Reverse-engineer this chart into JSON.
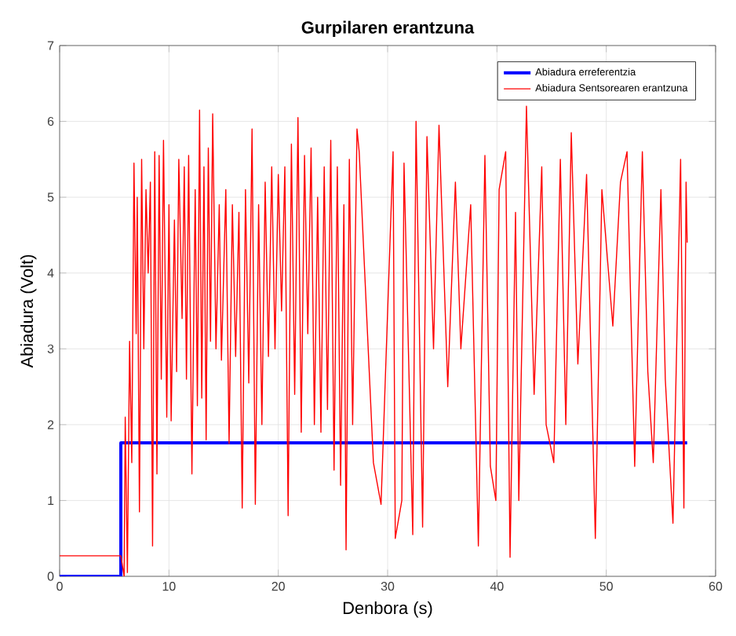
{
  "chart_data": {
    "type": "line",
    "title": "Gurpilaren erantzuna",
    "xlabel": "Denbora (s)",
    "ylabel": "Abiadura (Volt)",
    "xlim": [
      0,
      60
    ],
    "ylim": [
      0,
      7
    ],
    "xticks": [
      0,
      10,
      20,
      30,
      40,
      50,
      60
    ],
    "yticks": [
      0,
      1,
      2,
      3,
      4,
      5,
      6,
      7
    ],
    "grid": true,
    "legend": "top right",
    "marker": "none",
    "line_style": "solid",
    "series": [
      {
        "name": "Abiadura erreferentzia",
        "color": "#0000ff",
        "type": "step",
        "x": [
          0,
          5.6,
          57.4
        ],
        "values": [
          0,
          1.76,
          1.76
        ]
      },
      {
        "name": "Abiadura Sentsorearen erantzuna",
        "color": "#ff0000",
        "x": [
          0,
          5.6,
          5.9,
          6.0,
          6.2,
          6.4,
          6.6,
          6.8,
          7.0,
          7.1,
          7.3,
          7.5,
          7.7,
          7.9,
          8.1,
          8.3,
          8.5,
          8.7,
          8.9,
          9.1,
          9.3,
          9.5,
          9.8,
          10.0,
          10.2,
          10.5,
          10.7,
          10.9,
          11.2,
          11.4,
          11.6,
          11.8,
          12.1,
          12.4,
          12.6,
          12.8,
          13.0,
          13.2,
          13.4,
          13.6,
          13.8,
          14.0,
          14.3,
          14.6,
          14.8,
          15.2,
          15.5,
          15.8,
          16.1,
          16.4,
          16.7,
          17.0,
          17.3,
          17.6,
          17.9,
          18.2,
          18.5,
          18.8,
          19.1,
          19.4,
          19.7,
          20.0,
          20.3,
          20.6,
          20.9,
          21.2,
          21.5,
          21.8,
          22.1,
          22.4,
          22.7,
          23.0,
          23.3,
          23.6,
          23.9,
          24.2,
          24.5,
          24.8,
          25.1,
          25.4,
          25.7,
          26.0,
          26.2,
          26.5,
          26.8,
          27.2,
          27.4,
          28.7,
          29.4,
          30.5,
          30.7,
          31.3,
          31.5,
          32.3,
          32.6,
          33.2,
          33.6,
          34.2,
          34.7,
          35.5,
          36.2,
          36.7,
          37.6,
          38.3,
          38.9,
          39.4,
          39.9,
          40.2,
          40.8,
          41.2,
          41.7,
          42.0,
          42.7,
          43.4,
          44.1,
          44.5,
          45.2,
          45.8,
          46.3,
          46.8,
          47.4,
          48.2,
          49.0,
          49.6,
          50.6,
          51.3,
          51.9,
          52.6,
          53.3,
          53.8,
          54.3,
          55.0,
          55.4,
          56.1,
          56.8,
          57.1,
          57.3,
          57.4
        ],
        "values": [
          0.27,
          0.27,
          0.0,
          2.1,
          0.05,
          3.1,
          1.5,
          5.45,
          3.2,
          5.0,
          0.85,
          5.5,
          3.0,
          5.1,
          4.0,
          5.2,
          0.4,
          5.6,
          1.35,
          5.55,
          2.6,
          5.75,
          2.1,
          4.9,
          2.05,
          4.7,
          2.7,
          5.5,
          3.4,
          5.4,
          2.6,
          5.55,
          1.35,
          5.1,
          2.25,
          6.15,
          2.35,
          5.4,
          1.8,
          5.65,
          3.1,
          6.1,
          3.0,
          4.9,
          2.85,
          5.1,
          1.75,
          4.9,
          2.9,
          4.8,
          0.9,
          5.1,
          2.55,
          5.9,
          0.95,
          4.9,
          2.0,
          5.2,
          2.9,
          5.4,
          3.0,
          5.3,
          3.5,
          5.4,
          0.8,
          5.7,
          2.4,
          6.05,
          1.9,
          5.55,
          3.2,
          5.65,
          2.0,
          5.0,
          1.9,
          5.4,
          2.2,
          5.75,
          1.4,
          5.4,
          1.2,
          4.9,
          0.35,
          5.5,
          2.0,
          5.9,
          5.6,
          1.5,
          0.95,
          5.6,
          0.5,
          1.0,
          5.45,
          0.55,
          6.0,
          0.65,
          5.8,
          3.0,
          5.95,
          2.5,
          5.2,
          3.0,
          4.9,
          0.4,
          5.55,
          1.45,
          1.0,
          5.1,
          5.6,
          0.25,
          4.8,
          1.0,
          6.2,
          2.4,
          5.4,
          2.0,
          1.5,
          5.5,
          2.0,
          5.85,
          2.8,
          5.3,
          0.5,
          5.1,
          3.3,
          5.2,
          5.6,
          1.45,
          5.6,
          2.7,
          1.5,
          5.1,
          2.6,
          0.7,
          5.5,
          0.9,
          5.2,
          4.4
        ]
      }
    ]
  }
}
